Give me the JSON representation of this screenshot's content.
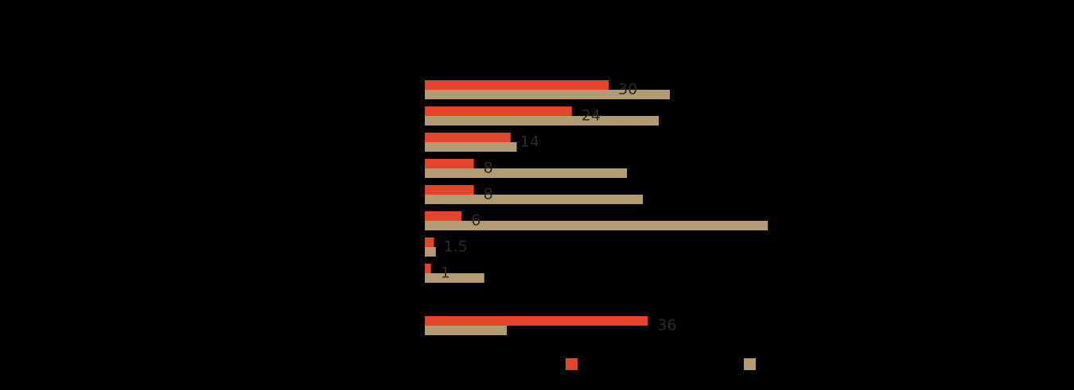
{
  "chart_data": {
    "type": "bar",
    "orientation": "horizontal",
    "categories": [
      null,
      null,
      null,
      null,
      null,
      null,
      null,
      null,
      null,
      null
    ],
    "series": [
      {
        "color": "#e5432a",
        "values": [
          30,
          24,
          14,
          8,
          8,
          6,
          1.5,
          1,
          null,
          36.4
        ]
      },
      {
        "color": "#b39b73",
        "values": [
          40,
          38.2,
          15,
          33,
          35.6,
          56,
          1.8,
          9.7,
          null,
          13.4
        ]
      }
    ],
    "value_labels": [
      30,
      24,
      14,
      8,
      8,
      6,
      1.5,
      1,
      null,
      36
    ],
    "xlim": [
      0,
      60
    ]
  }
}
